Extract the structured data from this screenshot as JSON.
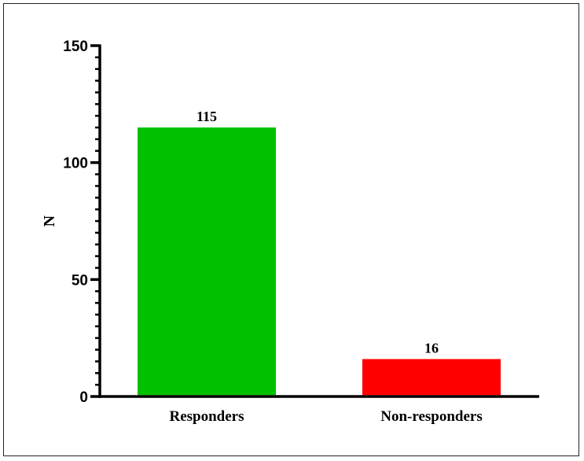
{
  "chart_data": {
    "type": "bar",
    "title": "",
    "xlabel": "",
    "ylabel": "N",
    "categories": [
      "Responders",
      "Non-responders"
    ],
    "values": [
      115,
      16
    ],
    "data_labels": [
      "115",
      "16"
    ],
    "colors": [
      "#00c000",
      "#ff0000"
    ],
    "ylim": [
      0,
      150
    ],
    "y_major_ticks": [
      0,
      50,
      100,
      150
    ],
    "y_minor_step": 5,
    "grid": false,
    "legend": "none"
  }
}
